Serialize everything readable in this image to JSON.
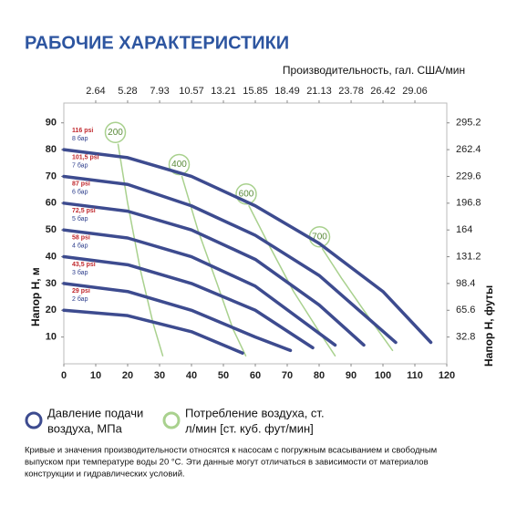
{
  "chart_data": {
    "type": "line",
    "title": "РАБОЧИЕ ХАРАКТЕРИСТИКИ",
    "x2_label": "Производительность, гал. США/мин",
    "y_label": "Напор Н, м",
    "y2_label": "Напор Н, футы",
    "xlim": [
      0,
      120
    ],
    "xticks": [
      0,
      10,
      20,
      30,
      40,
      50,
      60,
      70,
      80,
      90,
      100,
      110,
      120
    ],
    "ylim": [
      0,
      97.4
    ],
    "yticks": [
      10,
      20,
      30,
      40,
      50,
      60,
      70,
      80,
      90
    ],
    "x2lim": [
      0,
      31.7
    ],
    "x2ticks": [
      2.64,
      5.28,
      7.93,
      10.57,
      13.21,
      15.85,
      18.49,
      21.13,
      23.78,
      26.42,
      29.06
    ],
    "y2lim": [
      0,
      319.5
    ],
    "y2ticks": [
      32.8,
      65.6,
      98.4,
      131.2,
      164,
      196.8,
      229.6,
      262.4,
      295.2
    ],
    "series": [
      {
        "name": "8 бар",
        "psi": "116 psi",
        "color": "#3d4b8f",
        "x": [
          0,
          20,
          40,
          60,
          80,
          100,
          115
        ],
        "values": [
          80,
          77,
          70,
          59,
          45,
          27,
          8
        ]
      },
      {
        "name": "7 бар",
        "psi": "101,5 psi",
        "color": "#3d4b8f",
        "x": [
          0,
          20,
          40,
          60,
          80,
          104
        ],
        "values": [
          70,
          67,
          59,
          48,
          33,
          8
        ]
      },
      {
        "name": "6 бар",
        "psi": "87 psi",
        "color": "#3d4b8f",
        "x": [
          0,
          20,
          40,
          60,
          80,
          94
        ],
        "values": [
          60,
          57,
          50,
          39,
          22,
          7
        ]
      },
      {
        "name": "5 бар",
        "psi": "72,5 psi",
        "color": "#3d4b8f",
        "x": [
          0,
          20,
          40,
          60,
          85
        ],
        "values": [
          50,
          47,
          40,
          29,
          7
        ]
      },
      {
        "name": "4 бар",
        "psi": "58 psi",
        "color": "#3d4b8f",
        "x": [
          0,
          20,
          40,
          60,
          78
        ],
        "values": [
          40,
          37,
          30,
          20,
          6
        ]
      },
      {
        "name": "3 бар",
        "psi": "43,5 psi",
        "color": "#3d4b8f",
        "x": [
          0,
          20,
          40,
          60,
          71
        ],
        "values": [
          30,
          27,
          20,
          10,
          5
        ]
      },
      {
        "name": "2 бар",
        "psi": "29 psi",
        "color": "#3d4b8f",
        "x": [
          0,
          20,
          40,
          56
        ],
        "values": [
          20,
          18,
          12,
          4
        ]
      }
    ],
    "air_series": [
      {
        "name": "200",
        "color": "#a9d18e",
        "x": [
          17,
          20,
          24,
          28,
          31
        ],
        "values": [
          82,
          60,
          35,
          15,
          3
        ]
      },
      {
        "name": "400",
        "color": "#a9d18e",
        "x": [
          37,
          42,
          48,
          53,
          57
        ],
        "values": [
          70,
          50,
          30,
          13,
          3
        ]
      },
      {
        "name": "600",
        "color": "#a9d18e",
        "x": [
          58,
          64,
          72,
          80,
          85
        ],
        "values": [
          59,
          45,
          27,
          12,
          3
        ]
      },
      {
        "name": "700",
        "color": "#a9d18e",
        "x": [
          81,
          87,
          94,
          100,
          103
        ],
        "values": [
          43,
          32,
          20,
          10,
          5
        ]
      }
    ],
    "legend": [
      {
        "lines": [
          "Давление подачи",
          "воздуха, МПа"
        ],
        "color": "#3d4b8f"
      },
      {
        "lines": [
          "Потребление воздуха, ст.",
          "л/мин [ст. куб. фут/мин]"
        ],
        "color": "#a9d18e"
      }
    ],
    "note": [
      "Кривые и значения производительности относятся к насосам с погружным всасыванием и свободным",
      "выпуском при температуре воды 20 °С. Эти данные могут отличаться в зависимости от материалов",
      "конструкции и гидравлических условий."
    ]
  }
}
